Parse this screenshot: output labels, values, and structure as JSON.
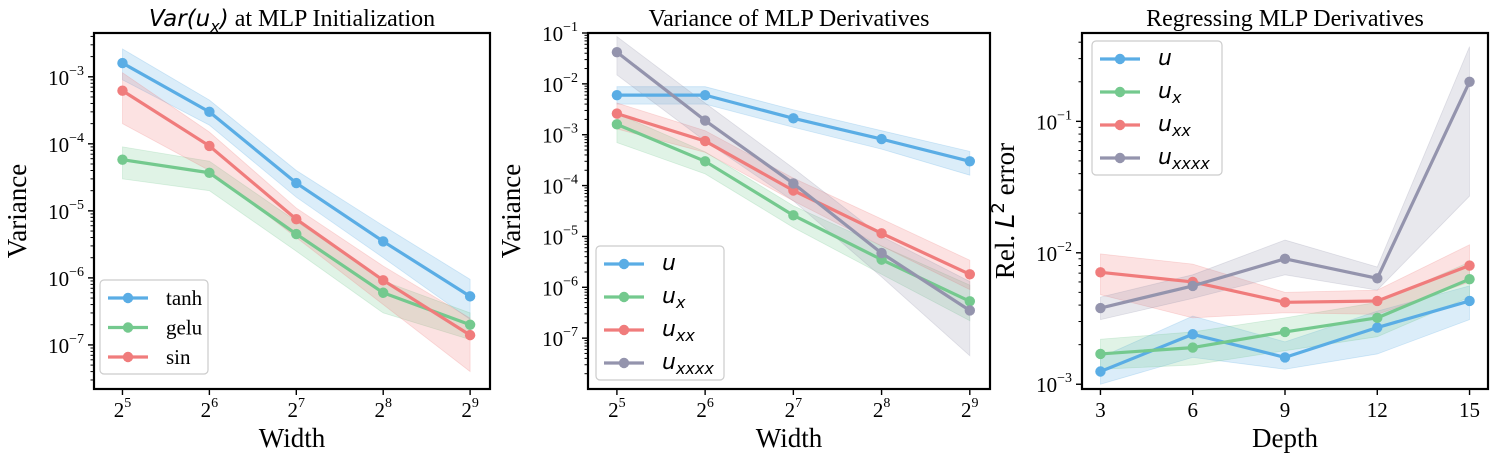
{
  "chart_data": [
    {
      "type": "line",
      "title": "Var(u_x) at MLP Initialization",
      "title_parts": [
        {
          "text": "Var(",
          "style": "math"
        },
        {
          "text": "u",
          "style": "math"
        },
        {
          "text": "x",
          "style": "sub"
        },
        {
          "text": ")",
          "style": "math"
        },
        {
          "text": " at MLP Initialization",
          "style": "serif"
        }
      ],
      "xlabel": "Width",
      "ylabel": "Variance",
      "xscale": "log2",
      "yscale": "log10",
      "xlim": [
        25.5,
        600
      ],
      "ylim": [
        2.2e-08,
        0.0045
      ],
      "x": [
        32,
        64,
        128,
        256,
        512
      ],
      "xticks": [
        {
          "value": 32,
          "base": "2",
          "exp": "5"
        },
        {
          "value": 64,
          "base": "2",
          "exp": "6"
        },
        {
          "value": 128,
          "base": "2",
          "exp": "7"
        },
        {
          "value": 256,
          "base": "2",
          "exp": "8"
        },
        {
          "value": 512,
          "base": "2",
          "exp": "9"
        }
      ],
      "yticks": [
        {
          "value": 1e-07,
          "base": "10",
          "exp": "−7"
        },
        {
          "value": 1e-06,
          "base": "10",
          "exp": "−6"
        },
        {
          "value": 1e-05,
          "base": "10",
          "exp": "−5"
        },
        {
          "value": 0.0001,
          "base": "10",
          "exp": "−4"
        },
        {
          "value": 0.001,
          "base": "10",
          "exp": "−3"
        }
      ],
      "grid": false,
      "legend_position": "lower-left",
      "series": [
        {
          "name": "tanh",
          "color": "#5aade5",
          "values": [
            0.0016,
            0.0003,
            2.6e-05,
            3.5e-06,
            5.3e-07
          ],
          "lower": [
            0.0009,
            0.00019,
            1.6e-05,
            2e-06,
            2.4e-07
          ],
          "upper": [
            0.0026,
            0.00045,
            4e-05,
            6e-06,
            9.5e-07
          ]
        },
        {
          "name": "gelu",
          "color": "#74c98e",
          "values": [
            5.8e-05,
            3.7e-05,
            4.5e-06,
            6e-07,
            2e-07
          ],
          "lower": [
            3e-05,
            2e-05,
            2.5e-06,
            3e-07,
            1.2e-07
          ],
          "upper": [
            9e-05,
            5.5e-05,
            7e-06,
            9e-07,
            3e-07
          ]
        },
        {
          "name": "sin",
          "color": "#f07c7c",
          "values": [
            0.00062,
            9.3e-05,
            7.5e-06,
            9.2e-07,
            1.4e-07
          ],
          "lower": [
            0.0002,
            4e-05,
            4e-06,
            4e-07,
            4e-08
          ],
          "upper": [
            0.00115,
            0.00015,
            1.1e-05,
            1.5e-06,
            2.5e-07
          ]
        }
      ]
    },
    {
      "type": "line",
      "title": "Variance of MLP Derivatives",
      "xlabel": "Width",
      "ylabel": "Variance",
      "xscale": "log2",
      "yscale": "log10",
      "xlim": [
        25.5,
        600
      ],
      "ylim": [
        1e-08,
        0.1
      ],
      "x": [
        32,
        64,
        128,
        256,
        512
      ],
      "xticks": [
        {
          "value": 32,
          "base": "2",
          "exp": "5"
        },
        {
          "value": 64,
          "base": "2",
          "exp": "6"
        },
        {
          "value": 128,
          "base": "2",
          "exp": "7"
        },
        {
          "value": 256,
          "base": "2",
          "exp": "8"
        },
        {
          "value": 512,
          "base": "2",
          "exp": "9"
        }
      ],
      "yticks": [
        {
          "value": 1e-07,
          "base": "10",
          "exp": "−7"
        },
        {
          "value": 1e-06,
          "base": "10",
          "exp": "−6"
        },
        {
          "value": 1e-05,
          "base": "10",
          "exp": "−5"
        },
        {
          "value": 0.0001,
          "base": "10",
          "exp": "−4"
        },
        {
          "value": 0.001,
          "base": "10",
          "exp": "−3"
        },
        {
          "value": 0.01,
          "base": "10",
          "exp": "−2"
        },
        {
          "value": 0.1,
          "base": "10",
          "exp": "−1"
        }
      ],
      "grid": false,
      "legend_position": "lower-left",
      "series": [
        {
          "name": "u",
          "sub": "",
          "color": "#5aade5",
          "values": [
            0.006,
            0.006,
            0.0021,
            0.00082,
            0.0003
          ],
          "lower": [
            0.004,
            0.004,
            0.0014,
            0.00052,
            0.00016
          ],
          "upper": [
            0.0088,
            0.0088,
            0.0031,
            0.0012,
            0.00047
          ]
        },
        {
          "name": "u",
          "sub": "x",
          "color": "#74c98e",
          "values": [
            0.0016,
            0.0003,
            2.6e-05,
            3.5e-06,
            5.3e-07
          ],
          "lower": [
            0.0007,
            0.00017,
            1.5e-05,
            1.8e-06,
            2.2e-07
          ],
          "upper": [
            0.0026,
            0.00046,
            4e-05,
            6.5e-06,
            1.1e-06
          ]
        },
        {
          "name": "u",
          "sub": "xx",
          "color": "#f07c7c",
          "values": [
            0.0026,
            0.00075,
            8e-05,
            1.15e-05,
            1.8e-06
          ],
          "lower": [
            0.0013,
            0.00045,
            5e-05,
            6.5e-06,
            9e-07
          ],
          "upper": [
            0.0042,
            0.0012,
            0.00014,
            2.2e-05,
            3.4e-06
          ]
        },
        {
          "name": "u",
          "sub": "xxxx",
          "color": "#9494ad",
          "values": [
            0.042,
            0.0019,
            0.00011,
            4.7e-06,
            3.5e-07
          ],
          "lower": [
            0.015,
            0.00075,
            5e-05,
            1.6e-06,
            4.5e-08
          ],
          "upper": [
            0.085,
            0.0042,
            0.00022,
            1e-05,
            1.3e-06
          ]
        }
      ]
    },
    {
      "type": "line",
      "title": "Regressing MLP Derivatives",
      "xlabel": "Depth",
      "ylabel": "Rel. L² error",
      "ylabel_parts": [
        {
          "text": "Rel. ",
          "style": "serif"
        },
        {
          "text": "L",
          "style": "math"
        },
        {
          "text": "2",
          "style": "sup"
        },
        {
          "text": " error",
          "style": "serif"
        }
      ],
      "xscale": "linear",
      "yscale": "log10",
      "xlim": [
        2.4,
        15.6
      ],
      "ylim": [
        0.00092,
        0.47
      ],
      "x": [
        3,
        6,
        9,
        12,
        15
      ],
      "xticks": [
        {
          "value": 3,
          "label": "3"
        },
        {
          "value": 6,
          "label": "6"
        },
        {
          "value": 9,
          "label": "9"
        },
        {
          "value": 12,
          "label": "12"
        },
        {
          "value": 15,
          "label": "15"
        }
      ],
      "yticks": [
        {
          "value": 0.001,
          "base": "10",
          "exp": "−3"
        },
        {
          "value": 0.01,
          "base": "10",
          "exp": "−2"
        },
        {
          "value": 0.1,
          "base": "10",
          "exp": "−1"
        }
      ],
      "grid": false,
      "legend_position": "upper-left",
      "series": [
        {
          "name": "u",
          "sub": "",
          "color": "#5aade5",
          "values": [
            0.00125,
            0.0024,
            0.0016,
            0.0027,
            0.0043
          ],
          "lower": [
            0.001,
            0.0016,
            0.0013,
            0.0017,
            0.0031
          ],
          "upper": [
            0.0016,
            0.0033,
            0.0021,
            0.0036,
            0.0056
          ]
        },
        {
          "name": "u",
          "sub": "x",
          "color": "#74c98e",
          "values": [
            0.0017,
            0.0019,
            0.0025,
            0.0032,
            0.0063
          ],
          "lower": [
            0.0013,
            0.0014,
            0.0018,
            0.0023,
            0.0046
          ],
          "upper": [
            0.0022,
            0.0025,
            0.0032,
            0.0042,
            0.0085
          ]
        },
        {
          "name": "u",
          "sub": "xx",
          "color": "#f07c7c",
          "values": [
            0.0071,
            0.006,
            0.0042,
            0.0043,
            0.008
          ],
          "lower": [
            0.0048,
            0.0032,
            0.0035,
            0.0034,
            0.006
          ],
          "upper": [
            0.0098,
            0.0082,
            0.005,
            0.0052,
            0.0115
          ]
        },
        {
          "name": "u",
          "sub": "xxxx",
          "color": "#9494ad",
          "values": [
            0.0038,
            0.0056,
            0.009,
            0.0064,
            0.2
          ],
          "lower": [
            0.0031,
            0.0045,
            0.0068,
            0.0052,
            0.027
          ],
          "upper": [
            0.0046,
            0.0068,
            0.0125,
            0.0078,
            0.37
          ]
        }
      ]
    }
  ]
}
